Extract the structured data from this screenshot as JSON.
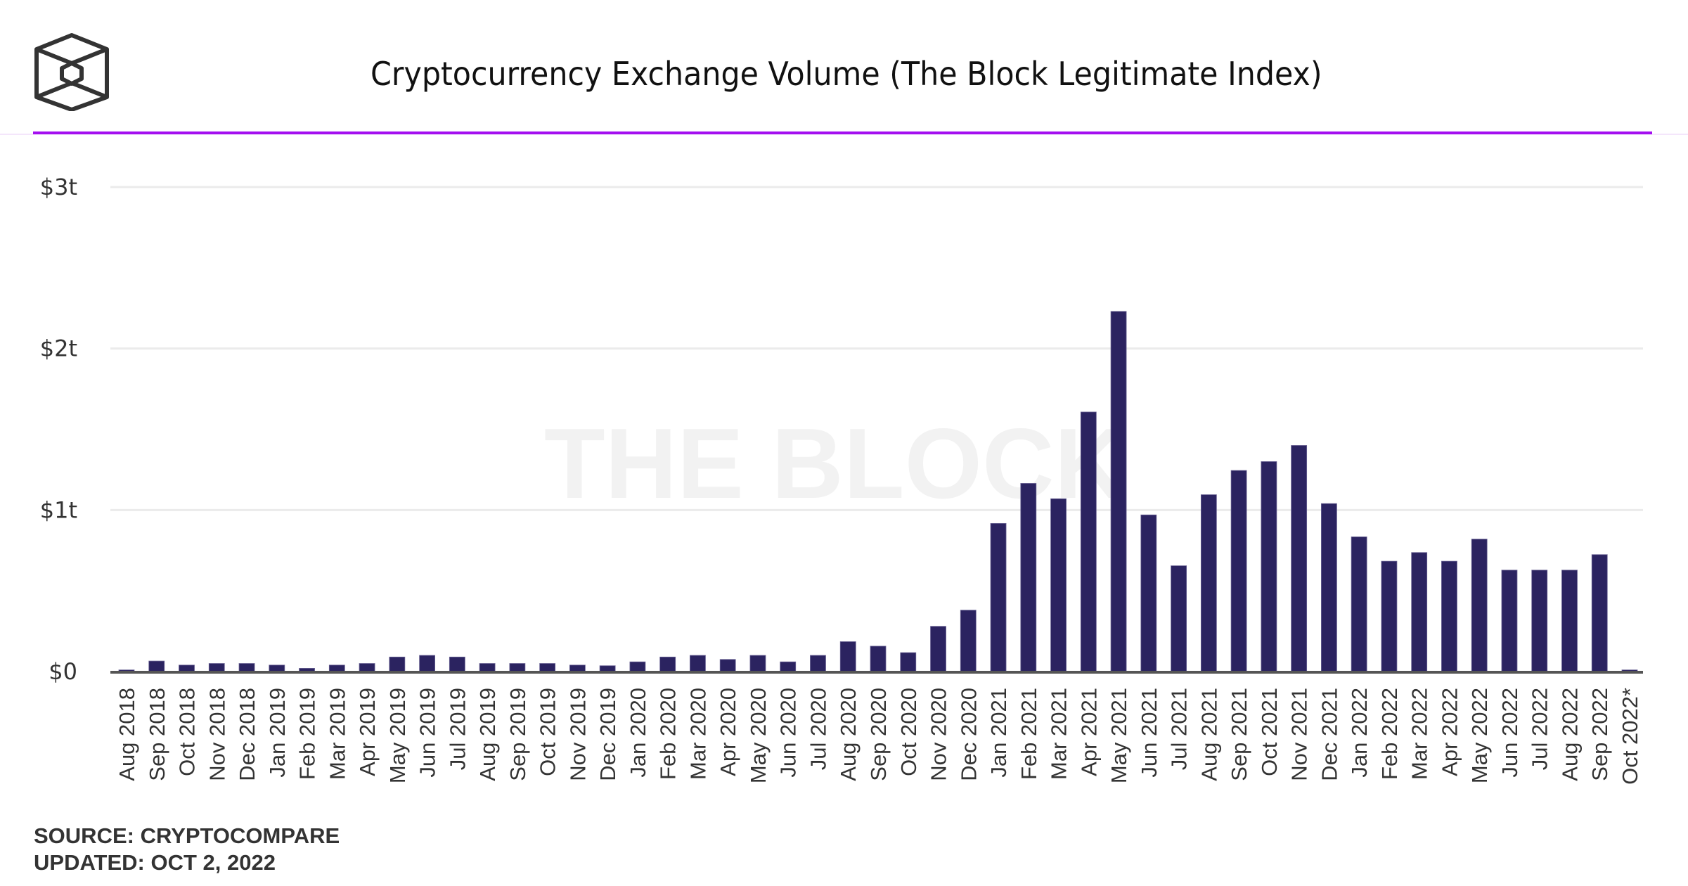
{
  "header": {
    "logo": "the-block-cube-logo",
    "title": "Cryptocurrency Exchange Volume (The Block Legitimate Index)"
  },
  "watermark": "THE BLOCK",
  "footer": {
    "source": "SOURCE: CRYPTOCOMPARE",
    "updated": "UPDATED: OCT 2, 2022"
  },
  "colors": {
    "bar": "#2b2360",
    "accent_rule": "#a40ff0",
    "gridline": "#ebebeb",
    "axis": "#555555",
    "text": "#333333",
    "watermark": "#f2f2f2"
  },
  "chart_data": {
    "type": "bar",
    "title": "Cryptocurrency Exchange Volume (The Block Legitimate Index)",
    "xlabel": "",
    "ylabel": "",
    "unit": "USD trillions",
    "ylim": [
      0,
      3
    ],
    "yticks": [
      0,
      1,
      2,
      3
    ],
    "ytick_labels": [
      "$0",
      "$1t",
      "$2t",
      "$3t"
    ],
    "grid": true,
    "legend": "none",
    "categories": [
      "Aug 2018",
      "Sep 2018",
      "Oct 2018",
      "Nov 2018",
      "Dec 2018",
      "Jan 2019",
      "Feb 2019",
      "Mar 2019",
      "Apr 2019",
      "May 2019",
      "Jun 2019",
      "Jul 2019",
      "Aug 2019",
      "Sep 2019",
      "Oct 2019",
      "Nov 2019",
      "Dec 2019",
      "Jan 2020",
      "Feb 2020",
      "Mar 2020",
      "Apr 2020",
      "May 2020",
      "Jun 2020",
      "Jul 2020",
      "Aug 2020",
      "Sep 2020",
      "Oct 2020",
      "Nov 2020",
      "Dec 2020",
      "Jan 2021",
      "Feb 2021",
      "Mar 2021",
      "Apr 2021",
      "May 2021",
      "Jun 2021",
      "Jul 2021",
      "Aug 2021",
      "Sep 2021",
      "Oct 2021",
      "Nov 2021",
      "Dec 2021",
      "Jan 2022",
      "Feb 2022",
      "Mar 2022",
      "Apr 2022",
      "May 2022",
      "Jun 2022",
      "Jul 2022",
      "Aug 2022",
      "Sep 2022",
      "Oct 2022*"
    ],
    "values": [
      0.01,
      0.065,
      0.04,
      0.05,
      0.05,
      0.04,
      0.02,
      0.04,
      0.05,
      0.09,
      0.1,
      0.09,
      0.05,
      0.05,
      0.05,
      0.04,
      0.036,
      0.06,
      0.09,
      0.1,
      0.075,
      0.1,
      0.06,
      0.1,
      0.185,
      0.157,
      0.117,
      0.28,
      0.38,
      0.917,
      1.165,
      1.07,
      1.607,
      2.23,
      0.97,
      0.655,
      1.095,
      1.245,
      1.3,
      1.4,
      1.04,
      0.834,
      0.683,
      0.737,
      0.683,
      0.82,
      0.628,
      0.628,
      0.628,
      0.724,
      0.01
    ]
  }
}
